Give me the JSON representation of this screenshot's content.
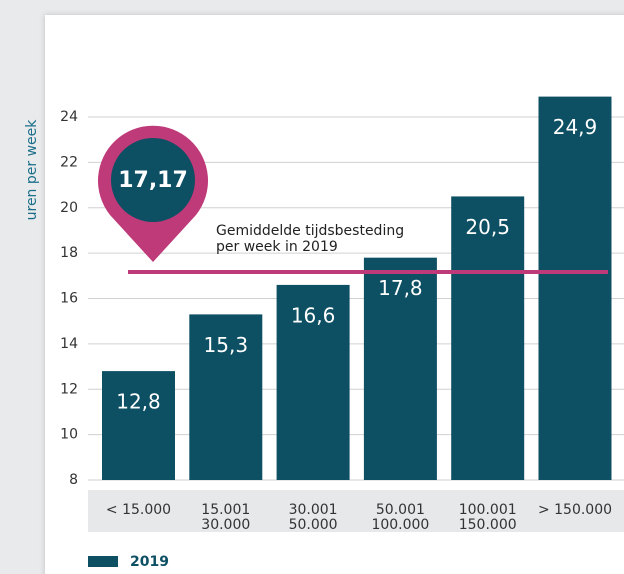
{
  "chart_data": {
    "type": "bar",
    "ylabel": "uren per week",
    "categories": [
      "< 15.000",
      "15.001\n30.000",
      "30.001\n50.000",
      "50.001\n100.000",
      "100.001\n150.000",
      "> 150.000"
    ],
    "series": [
      {
        "name": "2019",
        "color": "#0d4f63",
        "values": [
          12.8,
          15.3,
          16.6,
          17.8,
          20.5,
          24.9
        ],
        "value_labels": [
          "12,8",
          "15,3",
          "16,6",
          "17,8",
          "20,5",
          "24,9"
        ]
      }
    ],
    "ylim": [
      8,
      25.5
    ],
    "yticks": [
      8,
      10,
      12,
      14,
      16,
      18,
      20,
      22,
      24
    ],
    "grid": true,
    "average": {
      "value": 17.17,
      "label": "17,17",
      "color": "#bf3a78",
      "annotation": "Gemiddelde tijdsbesteding\nper week in 2019"
    }
  }
}
